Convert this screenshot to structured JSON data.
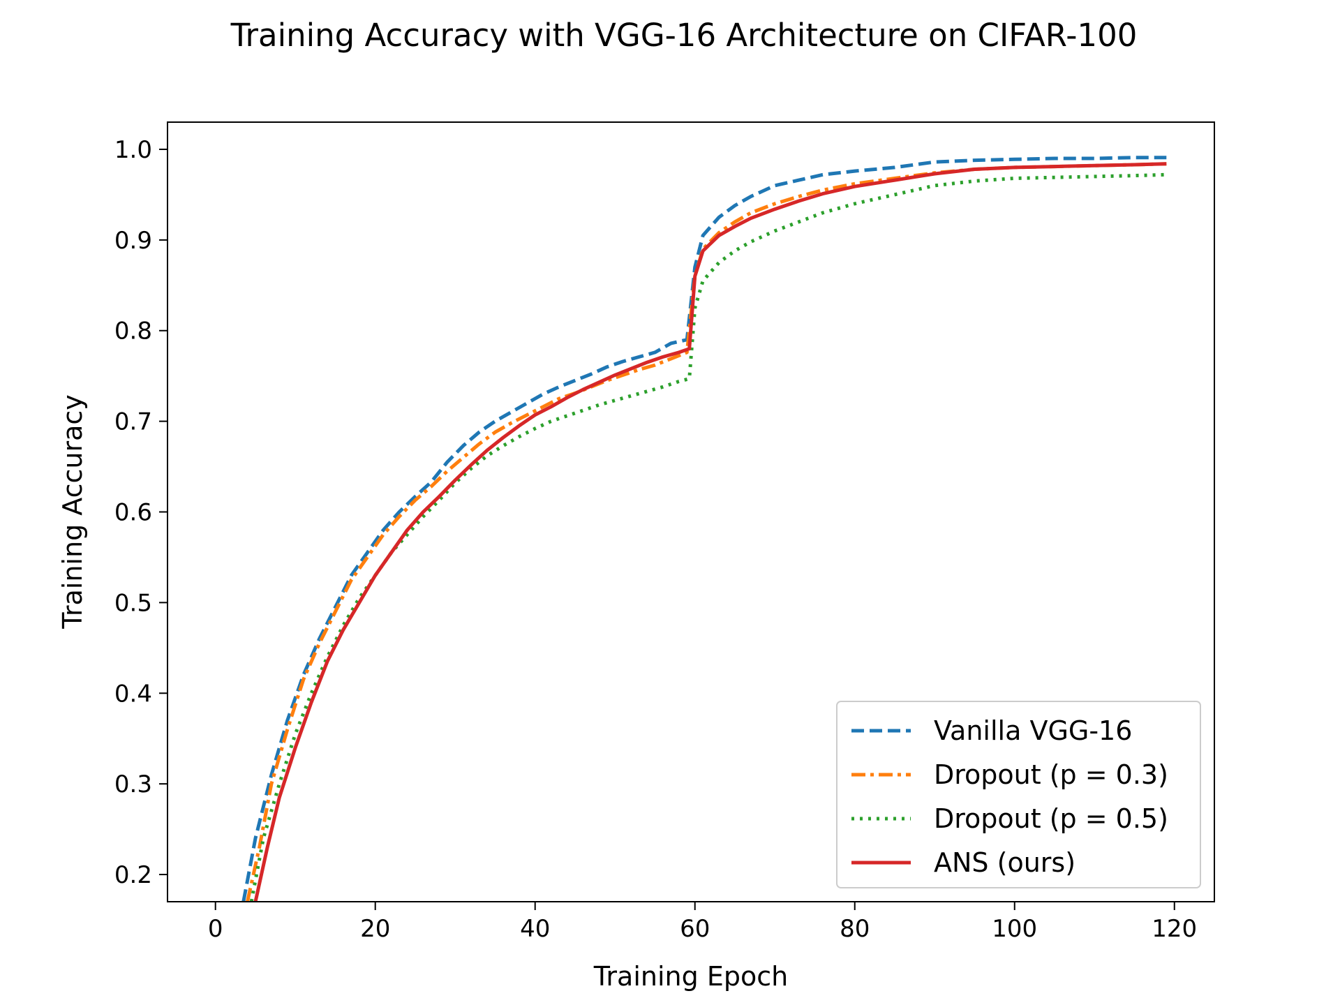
{
  "chart_data": {
    "type": "line",
    "title": "Training Accuracy with VGG-16 Architecture on CIFAR-100",
    "xlabel": "Training Epoch",
    "ylabel": "Training Accuracy",
    "xlim": [
      -6,
      125
    ],
    "ylim": [
      0.17,
      1.03
    ],
    "xticks": [
      0,
      20,
      40,
      60,
      80,
      100,
      120
    ],
    "yticks": [
      0.2,
      0.3,
      0.4,
      0.5,
      0.6,
      0.7,
      0.8,
      0.9,
      1.0
    ],
    "legend_position": "lower-right",
    "series": [
      {
        "name": "Vanilla VGG-16",
        "color": "#1f77b4",
        "dash": "dashed",
        "x": [
          3.5,
          5,
          7,
          9,
          11,
          13,
          15,
          17,
          19,
          21,
          23,
          25,
          27,
          29,
          31,
          33,
          35,
          37,
          39,
          41,
          43,
          45,
          47,
          49,
          51,
          53,
          55,
          57,
          59,
          60,
          61,
          63,
          65,
          67,
          70,
          73,
          76,
          80,
          85,
          90,
          95,
          100,
          105,
          110,
          115,
          119
        ],
        "y": [
          0.17,
          0.24,
          0.31,
          0.37,
          0.42,
          0.46,
          0.495,
          0.53,
          0.555,
          0.58,
          0.6,
          0.617,
          0.633,
          0.655,
          0.673,
          0.688,
          0.7,
          0.71,
          0.72,
          0.73,
          0.738,
          0.745,
          0.752,
          0.76,
          0.766,
          0.771,
          0.776,
          0.786,
          0.79,
          0.87,
          0.905,
          0.925,
          0.938,
          0.948,
          0.96,
          0.966,
          0.972,
          0.976,
          0.98,
          0.986,
          0.988,
          0.989,
          0.99,
          0.99,
          0.991,
          0.991
        ]
      },
      {
        "name": "Dropout (p = 0.3)",
        "color": "#ff7f0e",
        "dash": "dashdot",
        "x": [
          4,
          5.5,
          7,
          9,
          11,
          13,
          15,
          17,
          19,
          21,
          23,
          25,
          27,
          29,
          31,
          33,
          35,
          37,
          39,
          41,
          43,
          45,
          47,
          49,
          51,
          53,
          55,
          57,
          59,
          60,
          61,
          63,
          65,
          67,
          70,
          73,
          76,
          80,
          85,
          90,
          95,
          100,
          105,
          110,
          115,
          119
        ],
        "y": [
          0.17,
          0.23,
          0.3,
          0.36,
          0.415,
          0.455,
          0.49,
          0.525,
          0.55,
          0.575,
          0.595,
          0.613,
          0.628,
          0.645,
          0.66,
          0.675,
          0.688,
          0.698,
          0.707,
          0.716,
          0.725,
          0.731,
          0.738,
          0.745,
          0.751,
          0.757,
          0.762,
          0.769,
          0.776,
          0.86,
          0.89,
          0.908,
          0.92,
          0.93,
          0.94,
          0.948,
          0.955,
          0.962,
          0.968,
          0.974,
          0.978,
          0.98,
          0.981,
          0.982,
          0.983,
          0.984
        ]
      },
      {
        "name": "Dropout (p = 0.5)",
        "color": "#2ca02c",
        "dash": "dotted",
        "x": [
          4.5,
          6,
          8,
          10,
          12,
          14,
          16,
          18,
          20,
          22,
          24,
          26,
          28,
          30,
          32,
          34,
          36,
          38,
          40,
          42,
          44,
          46,
          48,
          50,
          52,
          54,
          56,
          58,
          59.3,
          60,
          61,
          63,
          65,
          67,
          70,
          73,
          76,
          80,
          85,
          90,
          95,
          100,
          105,
          110,
          115,
          119
        ],
        "y": [
          0.17,
          0.24,
          0.3,
          0.355,
          0.4,
          0.44,
          0.475,
          0.505,
          0.53,
          0.555,
          0.575,
          0.595,
          0.613,
          0.632,
          0.648,
          0.662,
          0.673,
          0.683,
          0.692,
          0.7,
          0.706,
          0.712,
          0.718,
          0.723,
          0.728,
          0.733,
          0.738,
          0.744,
          0.747,
          0.825,
          0.855,
          0.875,
          0.888,
          0.898,
          0.91,
          0.92,
          0.93,
          0.94,
          0.95,
          0.96,
          0.965,
          0.968,
          0.969,
          0.97,
          0.971,
          0.972
        ]
      },
      {
        "name": "ANS (ours)",
        "color": "#d62728",
        "dash": "solid",
        "x": [
          5,
          6.5,
          8,
          10,
          12,
          14,
          16,
          18,
          20,
          22,
          24,
          26,
          28,
          30,
          32,
          34,
          36,
          38,
          40,
          42,
          44,
          46,
          48,
          50,
          52,
          54,
          56,
          58,
          59.3,
          60,
          61,
          63,
          65,
          67,
          70,
          73,
          76,
          80,
          85,
          90,
          95,
          100,
          105,
          110,
          115,
          119
        ],
        "y": [
          0.17,
          0.23,
          0.285,
          0.34,
          0.39,
          0.435,
          0.47,
          0.5,
          0.53,
          0.555,
          0.58,
          0.6,
          0.617,
          0.635,
          0.652,
          0.668,
          0.682,
          0.695,
          0.707,
          0.716,
          0.726,
          0.735,
          0.743,
          0.751,
          0.758,
          0.765,
          0.771,
          0.776,
          0.78,
          0.86,
          0.888,
          0.905,
          0.915,
          0.924,
          0.934,
          0.943,
          0.951,
          0.959,
          0.966,
          0.973,
          0.978,
          0.98,
          0.981,
          0.982,
          0.983,
          0.984
        ]
      }
    ]
  }
}
